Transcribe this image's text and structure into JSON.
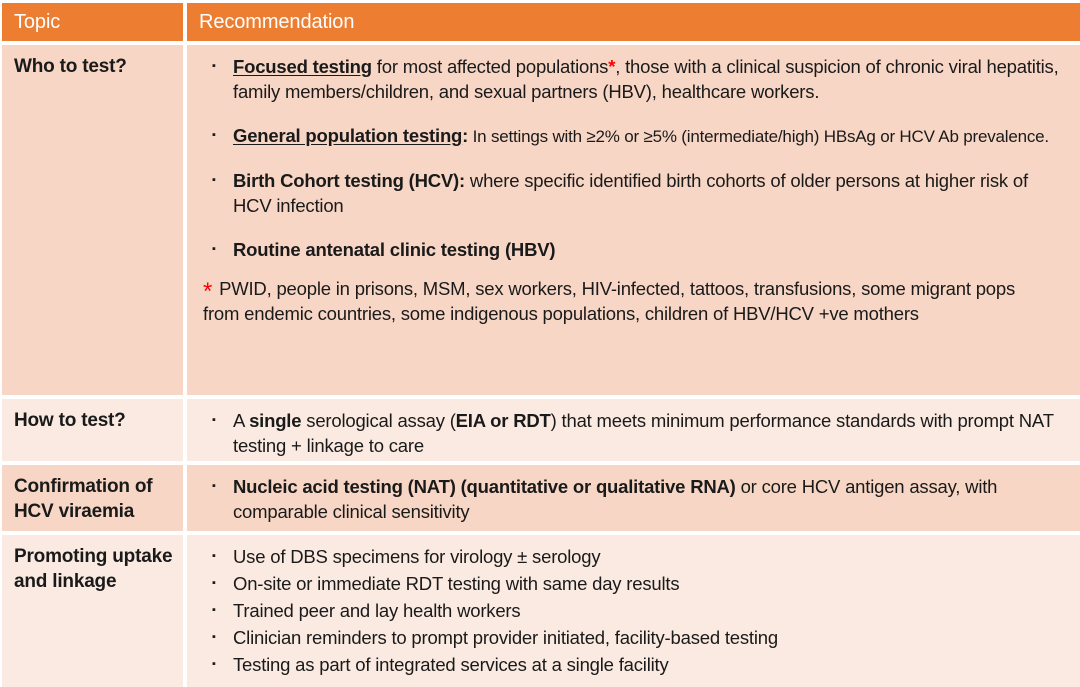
{
  "glyphs": {
    "bullet": "▪"
  },
  "colors": {
    "header_bg": "#ED7D31",
    "header_text": "#FFFFFF",
    "row_band_dark": "#F7D6C5",
    "row_band_light": "#FBEAE1",
    "body_text": "#1A1A1A",
    "accent_red": "#FF0000"
  },
  "table": {
    "header": {
      "topic": "Topic",
      "recommendation": "Recommendation"
    },
    "rows": [
      {
        "topic": "Who to test?",
        "items": [
          {
            "segs": [
              "Focused testing",
              " for most affected populations",
              "*",
              ", those with a clinical suspicion of chronic viral hepatitis, family members/children, and sexual partners (HBV), healthcare workers."
            ]
          },
          {
            "segs": [
              "General population testing",
              ":",
              " In settings with ≥2% or ≥5% (intermediate/high) HBsAg  or HCV Ab prevalence."
            ]
          },
          {
            "segs": [
              "Birth Cohort testing (HCV):",
              " where specific identified birth cohorts of older persons at higher risk of HCV infection"
            ]
          },
          {
            "segs": [
              "Routine antenatal clinic testing (HBV)"
            ]
          }
        ],
        "footnote": {
          "marker": "*",
          "text": " PWID, people in prisons, MSM, sex workers, HIV-infected, tattoos, transfusions, some migrant pops from endemic countries, some indigenous populations, children of HBV/HCV +ve mothers"
        }
      },
      {
        "topic": "How to test?",
        "items": [
          {
            "segs": [
              "A ",
              "single",
              " serological assay (",
              "EIA or RDT",
              ") that meets minimum performance standards with prompt NAT testing + linkage to care"
            ]
          }
        ]
      },
      {
        "topic": "Confirmation of HCV viraemia",
        "items": [
          {
            "segs": [
              "Nucleic acid testing (NAT) (quantitative or qualitative RNA)",
              " or core HCV antigen assay, with comparable clinical sensitivity"
            ]
          }
        ]
      },
      {
        "topic": "Promoting uptake and linkage",
        "items": [
          {
            "segs": [
              "Use of DBS specimens for virology ± serology"
            ]
          },
          {
            "segs": [
              "On-site or immediate RDT testing with same day results"
            ]
          },
          {
            "segs": [
              "Trained peer and lay health workers"
            ]
          },
          {
            "segs": [
              "Clinician reminders to prompt provider initiated, facility-based testing"
            ]
          },
          {
            "segs": [
              "Testing as part of integrated services at a single facility"
            ]
          }
        ]
      }
    ]
  }
}
